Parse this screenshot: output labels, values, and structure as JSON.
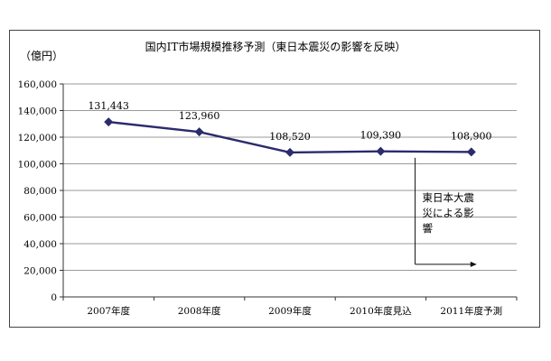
{
  "chart_data": {
    "type": "line",
    "title": "国内IT市場規模推移予測（東日本震災の影響を反映）",
    "ylabel": "（億円）",
    "xlabel": "",
    "categories": [
      "2007年度",
      "2008年度",
      "2009年度",
      "2010年度見込",
      "2011年度予測"
    ],
    "series": [
      {
        "values": [
          131443,
          123960,
          108520,
          109390,
          108900
        ],
        "labels": [
          "131,443",
          "123,960",
          "108,520",
          "109,390",
          "108,900"
        ]
      }
    ],
    "ylim": [
      0,
      160000
    ],
    "yticks": [
      0,
      20000,
      40000,
      60000,
      80000,
      100000,
      120000,
      140000,
      160000
    ],
    "ytick_labels": [
      "0",
      "20,000",
      "40,000",
      "60,000",
      "80,000",
      "100,000",
      "120,000",
      "140,000",
      "160,000"
    ],
    "grid": true,
    "line_color": "#2b2b6e",
    "annotation": {
      "text": "東日本大震災による影響",
      "lines": [
        "東日本大震",
        "災による影",
        "響"
      ]
    }
  }
}
